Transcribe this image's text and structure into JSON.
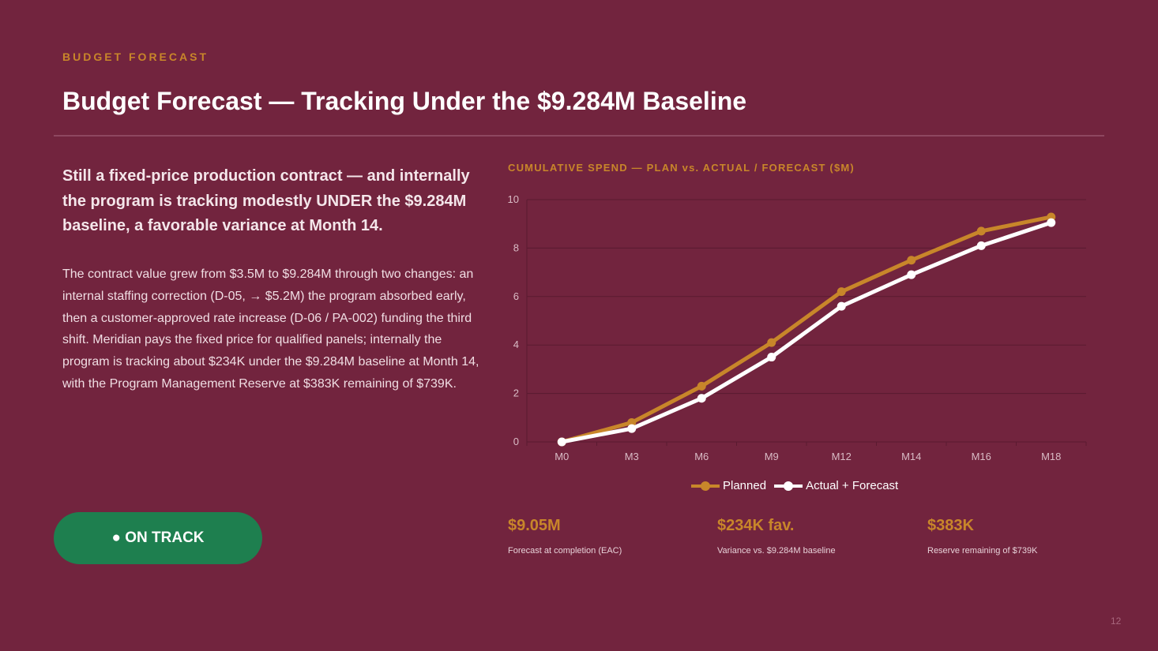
{
  "slide": {
    "eyebrow": "BUDGET FORECAST",
    "title": "Budget Forecast — Tracking Under the $9.284M Baseline",
    "lead": "Still a fixed-price production contract — and internally the program is tracking modestly UNDER the $9.284M baseline, a favorable variance at Month 14.",
    "body": "The contract value grew from $3.5M to $9.284M through two changes: an internal staffing correction (D-05, → $5.2M) the program absorbed early, then a customer-approved rate increase (D-06 / PA-002) funding the third shift. Meridian pays the fixed price for qualified panels; internally the program is tracking about $234K under the $9.284M baseline at Month 14, with the Program Management Reserve at $383K remaining of $739K.",
    "status": "● ON TRACK",
    "page_number": "12"
  },
  "chart_data": {
    "type": "line",
    "title": "CUMULATIVE SPEND — PLAN vs. ACTUAL / FORECAST ($M)",
    "categories": [
      "M0",
      "M3",
      "M6",
      "M9",
      "M12",
      "M14",
      "M16",
      "M18"
    ],
    "series": [
      {
        "name": "Planned",
        "values": [
          0,
          0.8,
          2.3,
          4.1,
          6.2,
          7.5,
          8.7,
          9.284
        ],
        "color": "#C8862A"
      },
      {
        "name": "Actual + Forecast",
        "values": [
          0,
          0.55,
          1.8,
          3.5,
          5.6,
          6.9,
          8.1,
          9.05
        ],
        "color": "#FFFFFF"
      }
    ],
    "yticks": [
      0,
      2,
      4,
      6,
      8,
      10
    ],
    "ylim": [
      0,
      10
    ],
    "grid": true,
    "legend": "bottom"
  },
  "kpis": [
    {
      "value": "$9.05M",
      "label": "Forecast at completion (EAC)"
    },
    {
      "value": "$234K fav.",
      "label": "Variance vs. $9.284M baseline"
    },
    {
      "value": "$383K",
      "label": "Reserve remaining of $739K"
    }
  ],
  "colors": {
    "background": "#72243E",
    "accent": "#C8862A",
    "status_green": "#1E7F4F"
  }
}
